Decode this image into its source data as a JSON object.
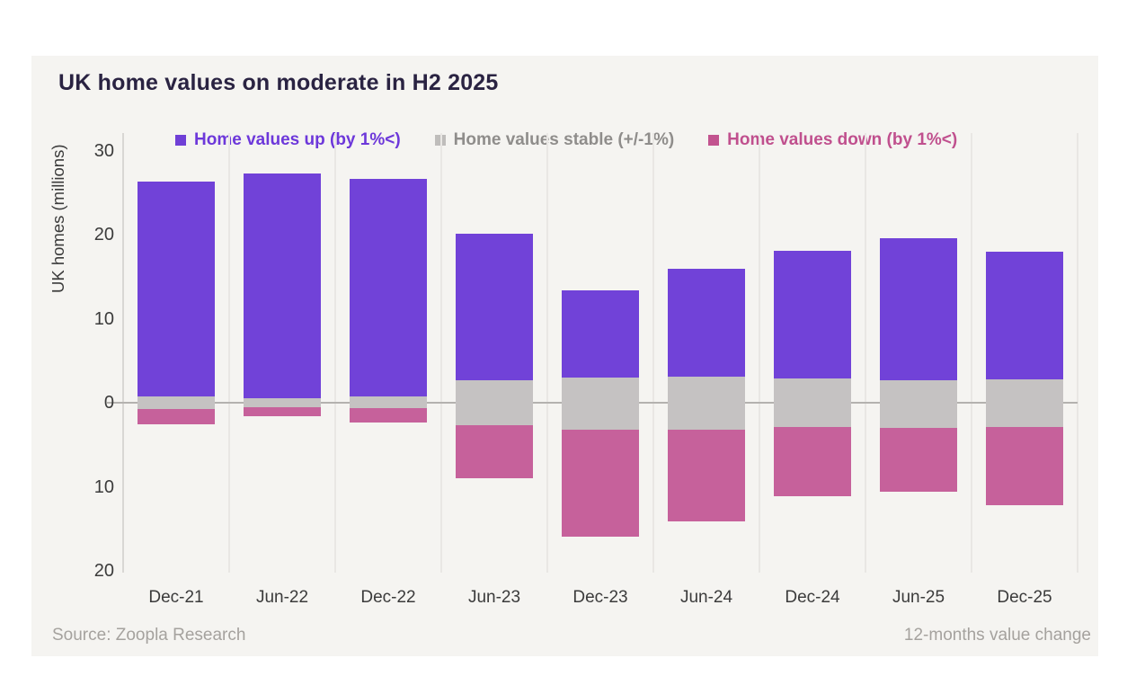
{
  "page": {
    "background": "#ffffff",
    "card_background": "#f5f4f1"
  },
  "chart": {
    "title": "UK home values on moderate in H2 2025",
    "y_axis_label": "UK homes (millions)"
  },
  "legend": [
    {
      "label": "Home values up (by 1%<)",
      "swatch_color": "#6f3fd6",
      "text_color": "#6d38da"
    },
    {
      "label": "Home values stable (+/-1%)",
      "swatch_color": "#bfbdbb",
      "text_color": "#8f8d8b"
    },
    {
      "label": "Home values down (by 1%<)",
      "swatch_color": "#c2538f",
      "text_color": "#c0508e"
    }
  ],
  "footer": {
    "source": "Source: Zoopla Research",
    "right_note": "12-months value change"
  },
  "chart_data": {
    "type": "bar",
    "subtype": "diverging-stacked",
    "title": "UK home values on moderate in H2 2025",
    "xlabel": "",
    "ylabel": "UK homes (millions)",
    "ylim": [
      -20,
      30
    ],
    "grid": "vertical-only",
    "legend_position": "top",
    "y_ticks": [
      {
        "value": 30,
        "label": "30"
      },
      {
        "value": 20,
        "label": "20"
      },
      {
        "value": 10,
        "label": "10"
      },
      {
        "value": 0,
        "label": "0"
      },
      {
        "value": -10,
        "label": "10"
      },
      {
        "value": -20,
        "label": "20"
      }
    ],
    "categories": [
      "Dec-21",
      "Jun-22",
      "Dec-22",
      "Jun-23",
      "Dec-23",
      "Jun-24",
      "Dec-24",
      "Jun-25",
      "Dec-25"
    ],
    "series": [
      {
        "name": "Home values up (by 1%<)",
        "color": "#7142d8",
        "values": [
          25.6,
          26.8,
          25.9,
          17.4,
          10.4,
          12.8,
          15.2,
          16.9,
          15.2
        ]
      },
      {
        "name": "Home values stable (+/-1%)",
        "color": "#c5c2c2",
        "values": [
          1.4,
          1.0,
          1.3,
          5.4,
          6.2,
          6.3,
          5.8,
          5.7,
          5.7
        ],
        "above_zero": [
          0.7,
          0.5,
          0.7,
          2.7,
          3.0,
          3.1,
          2.9,
          2.7,
          2.8
        ],
        "below_zero": [
          0.7,
          0.5,
          0.6,
          2.7,
          3.2,
          3.2,
          2.9,
          3.0,
          2.9
        ]
      },
      {
        "name": "Home values down (by 1%<)",
        "color": "#c6619b",
        "values": [
          1.9,
          1.1,
          1.7,
          6.3,
          12.7,
          10.9,
          8.2,
          7.6,
          9.3
        ]
      }
    ]
  }
}
